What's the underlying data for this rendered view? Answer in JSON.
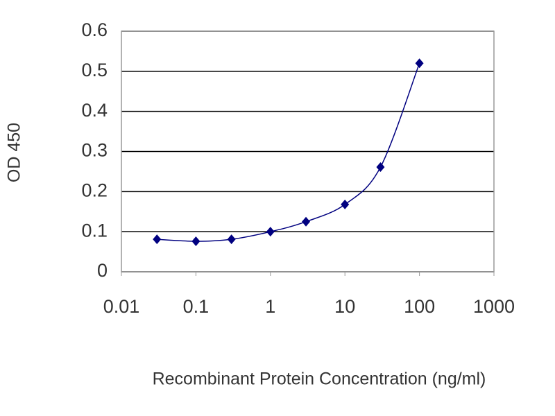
{
  "chart_data": {
    "type": "line",
    "x_label": "Recombinant Protein Concentration (ng/ml)",
    "y_label": "OD 450",
    "x": [
      0.03,
      0.1,
      0.3,
      1,
      3,
      10,
      30,
      100
    ],
    "series": [
      {
        "color": "#000080",
        "values": [
          0.081,
          0.076,
          0.081,
          0.1,
          0.125,
          0.168,
          0.261,
          0.52
        ]
      }
    ],
    "xscale": "log",
    "xlim": [
      0.01,
      1000
    ],
    "xticks": [
      0.01,
      0.1,
      1,
      10,
      100,
      1000
    ],
    "ylim": [
      0,
      0.6
    ],
    "yticks": [
      0,
      0.1,
      0.2,
      0.3,
      0.4,
      0.5,
      0.6
    ],
    "grid": true
  }
}
